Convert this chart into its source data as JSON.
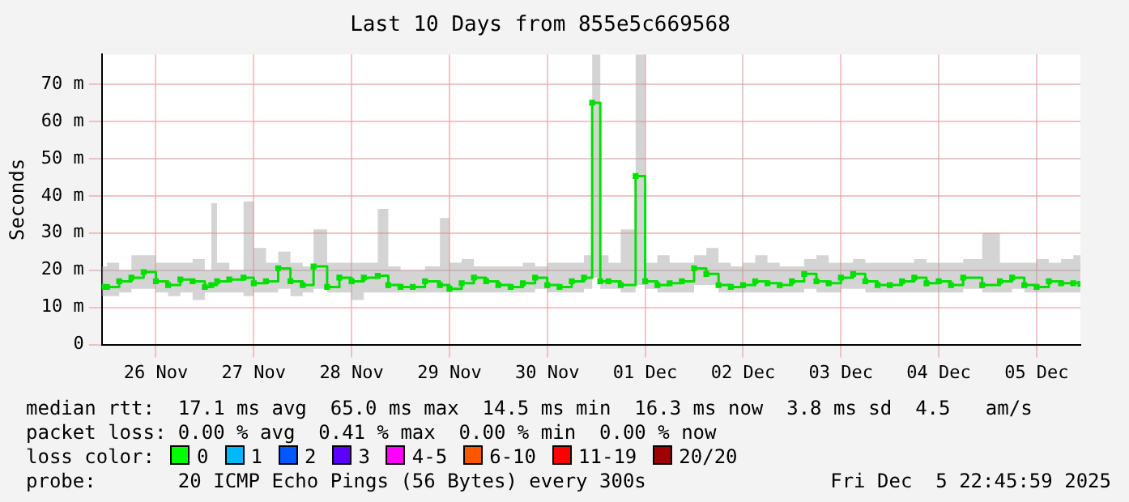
{
  "chart_data": {
    "type": "step",
    "title": "Last 10 Days from 855e5c669568",
    "ylabel": "Seconds",
    "x": [
      "2025-11-25T22:45",
      "2025-11-26T00:00",
      "2025-11-26T03:00",
      "2025-11-26T06:00",
      "2025-11-26T09:00",
      "2025-11-26T12:00",
      "2025-11-26T15:00",
      "2025-11-26T18:00",
      "2025-11-26T21:00",
      "2025-11-27T00:00",
      "2025-11-27T01:35",
      "2025-11-27T03:00",
      "2025-11-27T06:00",
      "2025-11-27T09:30",
      "2025-11-27T12:00",
      "2025-11-27T15:00",
      "2025-11-27T18:00",
      "2025-11-27T21:00",
      "2025-11-28T00:00",
      "2025-11-28T02:40",
      "2025-11-28T06:00",
      "2025-11-28T09:00",
      "2025-11-28T12:00",
      "2025-11-28T15:00",
      "2025-11-28T18:25",
      "2025-11-28T21:00",
      "2025-11-29T00:00",
      "2025-11-29T03:00",
      "2025-11-29T06:00",
      "2025-11-29T09:40",
      "2025-11-29T12:00",
      "2025-11-29T15:00",
      "2025-11-29T18:00",
      "2025-11-29T21:00",
      "2025-11-30T00:00",
      "2025-11-30T03:00",
      "2025-11-30T06:00",
      "2025-11-30T09:00",
      "2025-11-30T12:00",
      "2025-11-30T15:00",
      "2025-11-30T18:00",
      "2025-11-30T21:00",
      "2025-11-30T23:00",
      "2025-12-01T01:00",
      "2025-12-01T03:00",
      "2025-12-01T06:00",
      "2025-12-01T09:40",
      "2025-12-01T12:00",
      "2025-12-01T15:00",
      "2025-12-01T18:00",
      "2025-12-01T21:00",
      "2025-12-02T00:00",
      "2025-12-02T03:00",
      "2025-12-02T06:00",
      "2025-12-02T09:00",
      "2025-12-02T12:00",
      "2025-12-02T15:00",
      "2025-12-02T18:00",
      "2025-12-02T21:00",
      "2025-12-03T00:00",
      "2025-12-03T03:00",
      "2025-12-03T06:00",
      "2025-12-03T09:00",
      "2025-12-03T12:00",
      "2025-12-03T15:00",
      "2025-12-03T18:00",
      "2025-12-03T21:00",
      "2025-12-04T00:00",
      "2025-12-04T03:00",
      "2025-12-04T06:00",
      "2025-12-04T09:00",
      "2025-12-04T12:00",
      "2025-12-04T15:00",
      "2025-12-04T18:00",
      "2025-12-04T22:40",
      "2025-12-05T03:00",
      "2025-12-05T06:00",
      "2025-12-05T09:00",
      "2025-12-05T12:00",
      "2025-12-05T15:00",
      "2025-12-05T18:00",
      "2025-12-05T21:00",
      "2025-12-05T22:45"
    ],
    "series": [
      {
        "color": "#00e000",
        "values": [
          15.5,
          15.5,
          17,
          18,
          19.5,
          17,
          16,
          17.5,
          17,
          15.5,
          16,
          17,
          17.5,
          18,
          16.5,
          17,
          20.5,
          17,
          16,
          21,
          15.5,
          18,
          17,
          18,
          18.5,
          16,
          15.5,
          15.5,
          17,
          16,
          15,
          16.5,
          18,
          17,
          16,
          15.5,
          16.5,
          18,
          16,
          15.5,
          17,
          18,
          65,
          17,
          17,
          16,
          45.3,
          17,
          16,
          16.5,
          17,
          20.5,
          19,
          16,
          15.5,
          16,
          17,
          16.5,
          16,
          17,
          19,
          17,
          16.5,
          18,
          19,
          17,
          16,
          16,
          17,
          18,
          16.5,
          17,
          16,
          18,
          16,
          17,
          18,
          16,
          15.5,
          17,
          16.5,
          16.5,
          16.3
        ],
        "lower": [
          13,
          13,
          14,
          15,
          15,
          14,
          13,
          14,
          12,
          14,
          14,
          14,
          14,
          13,
          14,
          14,
          15,
          13,
          14,
          15,
          14,
          14,
          12,
          14,
          14,
          14,
          14,
          14,
          14,
          14,
          14,
          14,
          14,
          14,
          14,
          14,
          14,
          15,
          14,
          14,
          14,
          15,
          18,
          15,
          15,
          14,
          16,
          15,
          14,
          14,
          14,
          16,
          16,
          14,
          14,
          14,
          14,
          14,
          14,
          14,
          15,
          14,
          14,
          15,
          15,
          14,
          14,
          14,
          14,
          14,
          14,
          14,
          14,
          15,
          14,
          14,
          15,
          14,
          14,
          14,
          14,
          14,
          14
        ],
        "upper": [
          21,
          22,
          20,
          24,
          24,
          22,
          22,
          22,
          23,
          20,
          38,
          22,
          20,
          38.5,
          26,
          22,
          25,
          22,
          21,
          31,
          22,
          22,
          22,
          22,
          36.5,
          21,
          20,
          20,
          21,
          34,
          22,
          23,
          21,
          21,
          21,
          21,
          22,
          21,
          22,
          22,
          22,
          24,
          78,
          24,
          22,
          31,
          78,
          22,
          24,
          22,
          22,
          24,
          26,
          22,
          21,
          22,
          24,
          22,
          21,
          21,
          23,
          24,
          22,
          22,
          23,
          22,
          22,
          22,
          22,
          23,
          22,
          22,
          22,
          23,
          30,
          22,
          22,
          22,
          23,
          22,
          23,
          24,
          22
        ]
      }
    ],
    "xlim": [
      "2025-11-25T22:45",
      "2025-12-05T22:45"
    ],
    "xticks": [
      {
        "value": "2025-11-26T12:00",
        "label": "26 Nov"
      },
      {
        "value": "2025-11-27T12:00",
        "label": "27 Nov"
      },
      {
        "value": "2025-11-28T12:00",
        "label": "28 Nov"
      },
      {
        "value": "2025-11-29T12:00",
        "label": "29 Nov"
      },
      {
        "value": "2025-11-30T12:00",
        "label": "30 Nov"
      },
      {
        "value": "2025-12-01T12:00",
        "label": "01 Dec"
      },
      {
        "value": "2025-12-02T12:00",
        "label": "02 Dec"
      },
      {
        "value": "2025-12-03T12:00",
        "label": "03 Dec"
      },
      {
        "value": "2025-12-04T12:00",
        "label": "04 Dec"
      },
      {
        "value": "2025-12-05T12:00",
        "label": "05 Dec"
      }
    ],
    "ylim": [
      0,
      78
    ],
    "yticks": [
      {
        "value": 0,
        "label": "0"
      },
      {
        "value": 10,
        "label": "10 m"
      },
      {
        "value": 20,
        "label": "20 m"
      },
      {
        "value": 30,
        "label": "30 m"
      },
      {
        "value": 40,
        "label": "40 m"
      },
      {
        "value": 50,
        "label": "50 m"
      },
      {
        "value": 60,
        "label": "60 m"
      },
      {
        "value": 70,
        "label": "70 m"
      }
    ],
    "grid": true,
    "legend": false,
    "marker": "square",
    "annotations": [
      "median rtt:  17.1 ms avg  65.0 ms max  14.5 ms min  16.3 ms now  3.8 ms sd  4.5   am/s",
      "packet loss: 0.00 % avg  0.41 % max  0.00 % min  0.00 % now",
      "loss color:",
      "0",
      "1",
      "2",
      "3",
      "4-5",
      "6-10",
      "11-19",
      "20/20",
      "probe:       20 ICMP Echo Pings (56 Bytes) every 300s",
      "Fri Dec  5 22:45:59 2025"
    ]
  }
}
